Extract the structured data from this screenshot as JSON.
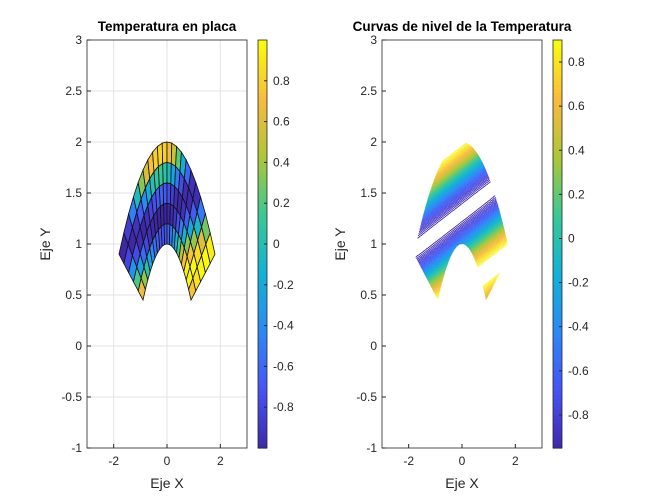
{
  "chart_data": [
    {
      "type": "surface",
      "title": "Temperatura en placa",
      "xlabel": "Eje X",
      "ylabel": "Eje Y",
      "xlim": [
        -3,
        3
      ],
      "ylim": [
        -1,
        3
      ],
      "xticks": [
        "-2",
        "0",
        "2"
      ],
      "xtick_values": [
        -2,
        0,
        2
      ],
      "yticks": [
        "-1",
        "-0.5",
        "0",
        "0.5",
        "1",
        "1.5",
        "2",
        "2.5",
        "3"
      ],
      "ytick_values": [
        -1,
        -0.5,
        0,
        0.5,
        1,
        1.5,
        2,
        2.5,
        3
      ],
      "grid": true,
      "colormap": "parula",
      "colorbar": {
        "clim": [
          -1,
          1
        ],
        "ticks": [
          "-0.8",
          "-0.6",
          "-0.4",
          "-0.2",
          "0",
          "0.2",
          "0.4",
          "0.6",
          "0.8"
        ],
        "tick_values": [
          -0.8,
          -0.6,
          -0.4,
          -0.2,
          0,
          0.2,
          0.4,
          0.6,
          0.8
        ]
      },
      "domain": {
        "inner_apex": [
          0,
          1
        ],
        "outer_apex": [
          0,
          2
        ],
        "inner_ends": [
          [
            -0.9,
            0.45
          ],
          [
            0.9,
            0.45
          ]
        ],
        "outer_ends": [
          [
            -1.8,
            0.9
          ],
          [
            1.8,
            0.9
          ]
        ]
      },
      "mesh": {
        "radial_cells": 5,
        "angular_cells": 20
      }
    },
    {
      "type": "contour",
      "title": "Curvas de nivel de la Temperatura",
      "xlabel": "Eje X",
      "ylabel": "Eje Y",
      "xlim": [
        -3,
        3
      ],
      "ylim": [
        -1,
        3
      ],
      "xticks": [
        "-2",
        "0",
        "2"
      ],
      "xtick_values": [
        -2,
        0,
        2
      ],
      "yticks": [
        "-1",
        "-0.5",
        "0",
        "0.5",
        "1",
        "1.5",
        "2",
        "2.5",
        "3"
      ],
      "ytick_values": [
        -1,
        -0.5,
        0,
        0.5,
        1,
        1.5,
        2,
        2.5,
        3
      ],
      "grid": false,
      "levels": 60,
      "colormap": "parula",
      "colorbar": {
        "clim": [
          -0.95,
          0.9
        ],
        "ticks": [
          "-0.8",
          "-0.6",
          "-0.4",
          "-0.2",
          "0",
          "0.2",
          "0.4",
          "0.6",
          "0.8"
        ],
        "tick_values": [
          -0.8,
          -0.6,
          -0.4,
          -0.2,
          0,
          0.2,
          0.4,
          0.6,
          0.8
        ]
      }
    }
  ]
}
